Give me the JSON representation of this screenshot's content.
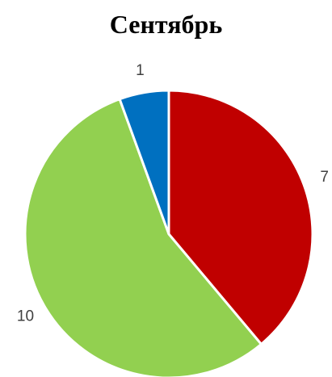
{
  "chart_data": {
    "type": "pie",
    "title": "Сентябрь",
    "slices": [
      {
        "label": "7",
        "value": 7,
        "color": "#C00000"
      },
      {
        "label": "10",
        "value": 10,
        "color": "#92D050"
      },
      {
        "label": "1",
        "value": 1,
        "color": "#0070C0"
      }
    ],
    "start_angle_deg": 0,
    "direction": "clockwise",
    "slice_border_color": "#FFFFFF",
    "data_labels": "outside",
    "legend": "none"
  }
}
